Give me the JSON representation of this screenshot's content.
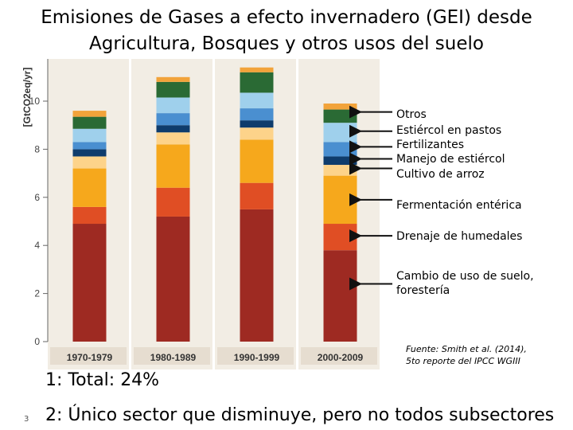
{
  "slide": {
    "title_line1": "Emisiones de Gases a efecto invernadero (GEI) desde",
    "title_line2": "Agricultura, Bosques y otros usos del suelo",
    "source_line1": "Fuente: Smith et al. (2014),",
    "source_line2": "5to reporte del IPCC WGIII",
    "note1": "1: Total: 24%",
    "note2": "2: Único sector que disminuye, pero no todos subsectores",
    "slide_number": "3"
  },
  "chart_data": {
    "type": "bar",
    "stacked": true,
    "ylabel": "[GtCO2eq/yr]",
    "ylim": [
      0,
      11.5
    ],
    "yticks": [
      0,
      2,
      4,
      6,
      8,
      10
    ],
    "categories": [
      "1970-1979",
      "1980-1989",
      "1990-1999",
      "2000-2009"
    ],
    "series": [
      {
        "name": "Cambio de uso de suelo, forestería",
        "color": "#9e2a22",
        "values": [
          4.9,
          5.2,
          5.5,
          3.8
        ]
      },
      {
        "name": "Drenaje de humedales",
        "color": "#e04e24",
        "values": [
          0.7,
          1.2,
          1.1,
          1.1
        ]
      },
      {
        "name": "Fermentación entérica",
        "color": "#f6a81c",
        "values": [
          1.6,
          1.8,
          1.8,
          2.0
        ]
      },
      {
        "name": "Cultivo de arroz",
        "color": "#fdd38a",
        "values": [
          0.5,
          0.5,
          0.5,
          0.45
        ]
      },
      {
        "name": "Manejo de estiércol",
        "color": "#0f3c6c",
        "values": [
          0.3,
          0.3,
          0.3,
          0.35
        ]
      },
      {
        "name": "Fertilizantes",
        "color": "#4a8fd0",
        "values": [
          0.3,
          0.5,
          0.5,
          0.6
        ]
      },
      {
        "name": "Estiércol en pastos",
        "color": "#9fd0ec",
        "values": [
          0.55,
          0.65,
          0.65,
          0.8
        ]
      },
      {
        "name": "Otros",
        "color": "#2a6a34",
        "values": [
          0.5,
          0.65,
          0.85,
          0.55
        ]
      },
      {
        "name": "",
        "color": "#f2a33a",
        "values": [
          0.25,
          0.2,
          0.2,
          0.25
        ]
      }
    ],
    "annotations": [
      {
        "text": "Otros",
        "target_y": 9.55
      },
      {
        "text": "Estiércol en pastos",
        "target_y": 8.75
      },
      {
        "text": "Fertilizantes",
        "target_y": 8.1
      },
      {
        "text": "Manejo de estiércol",
        "target_y": 7.6
      },
      {
        "text": "Cultivo de arroz",
        "target_y": 7.2
      },
      {
        "text": "Fermentación entérica",
        "target_y": 5.9
      },
      {
        "text": "Drenaje de humedales",
        "target_y": 4.4
      },
      {
        "text": "Cambio de uso de suelo, forestería",
        "target_y": 2.4
      }
    ]
  }
}
